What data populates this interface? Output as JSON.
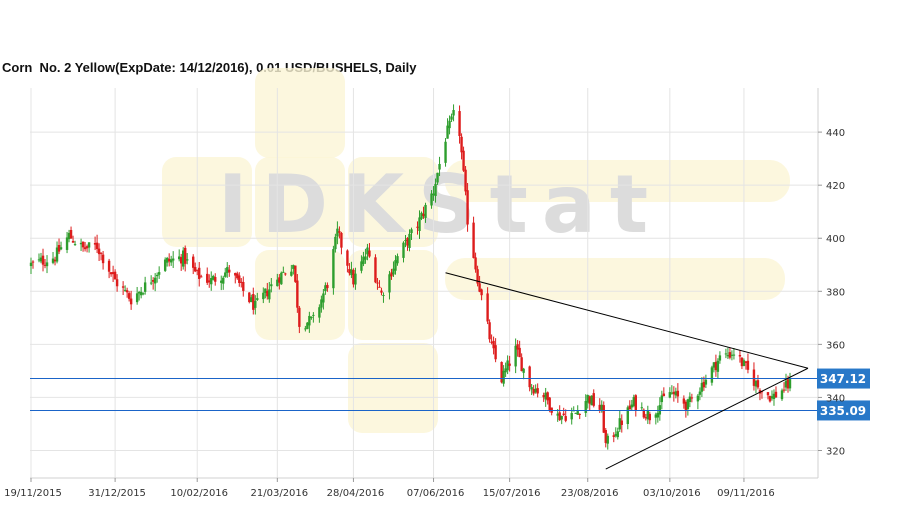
{
  "chart_data": {
    "type": "candlestick",
    "title": "Corn  No. 2 Yellow(ExpDate: 14/12/2016), 0.01 USD/BUSHELS, Daily",
    "watermark": "IDKStat",
    "x_tick_labels": [
      "19/11/2015",
      "31/12/2015",
      "10/02/2016",
      "21/03/2016",
      "28/04/2016",
      "07/06/2016",
      "15/07/2016",
      "23/08/2016",
      "03/10/2016",
      "09/11/2016"
    ],
    "y_ticks": [
      320,
      340,
      360,
      380,
      400,
      420,
      440
    ],
    "ylim": [
      310,
      455
    ],
    "grid": true,
    "colors": {
      "up": "#2e9e2e",
      "down": "#dd1c1c",
      "level_line": "#1a64c8",
      "level_label_bg": "#2878c8",
      "trendline": "#000000"
    },
    "horizontal_levels": [
      {
        "label": "347.12",
        "value": 347.12
      },
      {
        "label": "335.09",
        "value": 335.09
      }
    ],
    "trendlines": [
      {
        "from": [
          "2016-06-13",
          387
        ],
        "to": [
          "2016-12-02",
          351
        ]
      },
      {
        "from": [
          "2016-09-01",
          313
        ],
        "to": [
          "2016-12-02",
          351
        ]
      }
    ],
    "close_path": [
      [
        "2015-11-19",
        390
      ],
      [
        "2015-12-01",
        393
      ],
      [
        "2015-12-08",
        401
      ],
      [
        "2015-12-15",
        396
      ],
      [
        "2015-12-22",
        397
      ],
      [
        "2015-12-31",
        384
      ],
      [
        "2016-01-08",
        377
      ],
      [
        "2016-01-15",
        382
      ],
      [
        "2016-01-25",
        391
      ],
      [
        "2016-02-03",
        393
      ],
      [
        "2016-02-10",
        386
      ],
      [
        "2016-02-17",
        384
      ],
      [
        "2016-02-26",
        388
      ],
      [
        "2016-03-04",
        380
      ],
      [
        "2016-03-10",
        374
      ],
      [
        "2016-03-21",
        385
      ],
      [
        "2016-03-29",
        390
      ],
      [
        "2016-04-01",
        368
      ],
      [
        "2016-04-08",
        369
      ],
      [
        "2016-04-15",
        383
      ],
      [
        "2016-04-20",
        402
      ],
      [
        "2016-04-28",
        384
      ],
      [
        "2016-05-05",
        395
      ],
      [
        "2016-05-12",
        379
      ],
      [
        "2016-05-20",
        393
      ],
      [
        "2016-05-30",
        405
      ],
      [
        "2016-06-07",
        418
      ],
      [
        "2016-06-13",
        438
      ],
      [
        "2016-06-17",
        446
      ],
      [
        "2016-06-20",
        440
      ],
      [
        "2016-06-24",
        407
      ],
      [
        "2016-06-29",
        385
      ],
      [
        "2016-07-06",
        359
      ],
      [
        "2016-07-11",
        347
      ],
      [
        "2016-07-18",
        358
      ],
      [
        "2016-07-25",
        345
      ],
      [
        "2016-08-01",
        341
      ],
      [
        "2016-08-08",
        333
      ],
      [
        "2016-08-17",
        334
      ],
      [
        "2016-08-23",
        340
      ],
      [
        "2016-08-30",
        335
      ],
      [
        "2016-09-01",
        322
      ],
      [
        "2016-09-08",
        330
      ],
      [
        "2016-09-15",
        338
      ],
      [
        "2016-09-23",
        333
      ],
      [
        "2016-10-03",
        342
      ],
      [
        "2016-10-12",
        337
      ],
      [
        "2016-10-20",
        346
      ],
      [
        "2016-10-28",
        355
      ],
      [
        "2016-11-04",
        357
      ],
      [
        "2016-11-09",
        352
      ],
      [
        "2016-11-16",
        344
      ],
      [
        "2016-11-23",
        340
      ],
      [
        "2016-12-02",
        345
      ]
    ]
  }
}
